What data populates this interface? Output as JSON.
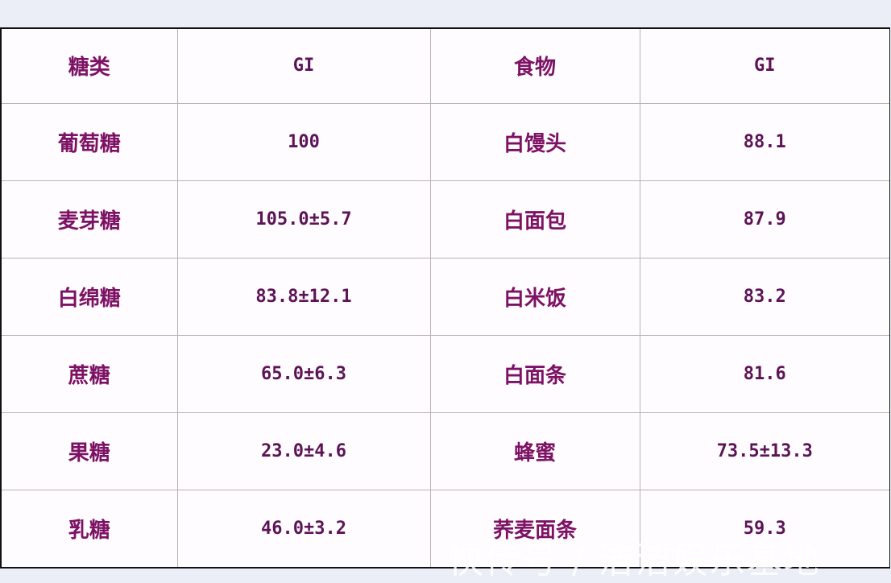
{
  "headers": [
    "糖类",
    "GI",
    "食物",
    "GI"
  ],
  "rows": [
    [
      "葡萄糖",
      "100",
      "白馒头",
      "88.1"
    ],
    [
      "麦芽糖",
      "105.0±5.7",
      "白面包",
      "87.9"
    ],
    [
      "白绵糖",
      "83.8±12.1",
      "白米饭",
      "83.2"
    ],
    [
      "蔗糖",
      "65.0±6.3",
      "白面条",
      "81.6"
    ],
    [
      "果糖",
      "23.0±4.6",
      "蜂蜜",
      "73.5±13.3"
    ],
    [
      "乳糖",
      "46.0±3.2",
      "荞麦面条",
      "59.3"
    ]
  ],
  "watermark": "快传号 / 洁洁娱乐基地",
  "colors": {
    "text": "#7d1264",
    "numbers": "#5c1456",
    "background": "#eceef7"
  }
}
